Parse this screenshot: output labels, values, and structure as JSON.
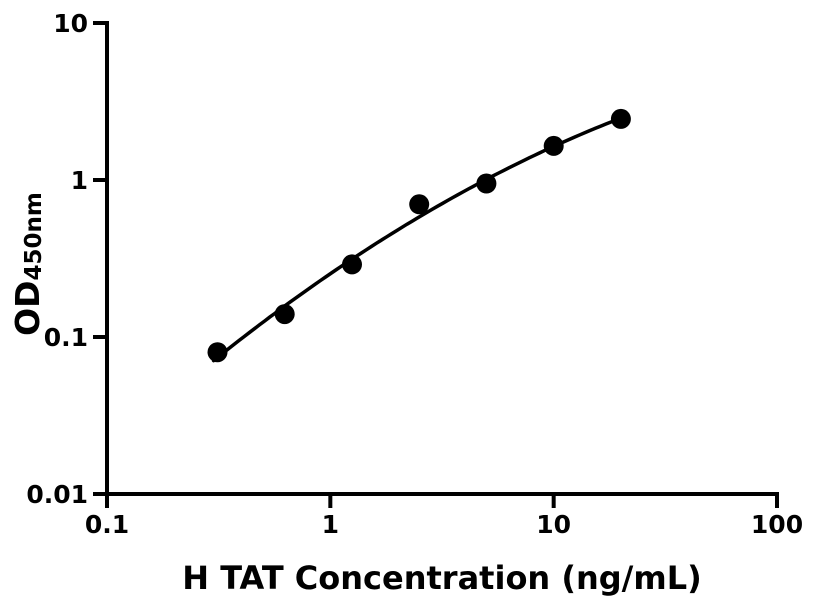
{
  "figure": {
    "background_color": "#ffffff",
    "ink_color": "#000000"
  },
  "chart_data": {
    "type": "scatter",
    "title": "",
    "xlabel": "H TAT Concentration (ng/mL)",
    "ylabel_main": "OD",
    "ylabel_sub": "450nm",
    "x_scale": "log10",
    "y_scale": "log10",
    "xlim": [
      0.1,
      100
    ],
    "ylim": [
      0.01,
      10
    ],
    "x_ticks": [
      0.1,
      1,
      10,
      100
    ],
    "x_tick_labels": [
      "0.1",
      "1",
      "10",
      "100"
    ],
    "y_ticks": [
      0.01,
      0.1,
      1,
      10
    ],
    "y_tick_labels": [
      "0.01",
      "0.1",
      "1",
      "10"
    ],
    "grid": false,
    "legend": null,
    "series": [
      {
        "name": "standard-points",
        "type": "scatter",
        "marker": "filled-circle",
        "color": "#000000",
        "x": [
          0.3125,
          0.625,
          1.25,
          2.5,
          5,
          10,
          20
        ],
        "y": [
          0.08,
          0.14,
          0.29,
          0.7,
          0.95,
          1.65,
          2.45
        ]
      },
      {
        "name": "fit-curve",
        "type": "line",
        "color": "#000000",
        "fit_model": "quadratic in log10(x)-log10(y) space",
        "fit_coeffs": {
          "a": -0.2352,
          "b": 0.8443,
          "c": -0.163,
          "u0": 0.398
        },
        "x_range": [
          0.3,
          20
        ]
      }
    ]
  }
}
